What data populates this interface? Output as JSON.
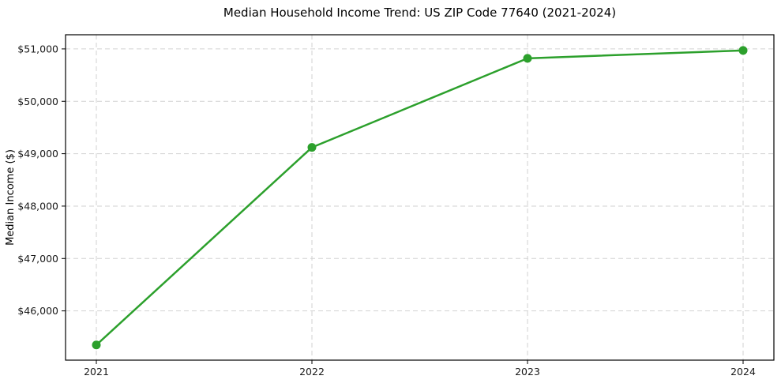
{
  "figure": {
    "background": "#ffffff"
  },
  "chart_data": {
    "type": "line",
    "title": "Median Household Income Trend: US ZIP Code 77640 (2021-2024)",
    "xlabel": "",
    "ylabel": "Median Income ($)",
    "categories": [
      "2021",
      "2022",
      "2023",
      "2024"
    ],
    "series": [
      {
        "name": "median-household-income",
        "values": [
          45350,
          49120,
          50820,
          50970
        ],
        "color": "#2ca02c",
        "marker": "circle",
        "marker_radius": 5.5
      }
    ],
    "yticks": [
      46000,
      47000,
      48000,
      49000,
      50000,
      51000
    ],
    "ytick_labels": [
      "$46,000",
      "$47,000",
      "$48,000",
      "$49,000",
      "$50,000",
      "$51,000"
    ],
    "ylim": [
      45060,
      51270
    ],
    "grid": true,
    "grid_style": "dashed",
    "grid_color": "#d2d2d2",
    "legend": "none"
  }
}
